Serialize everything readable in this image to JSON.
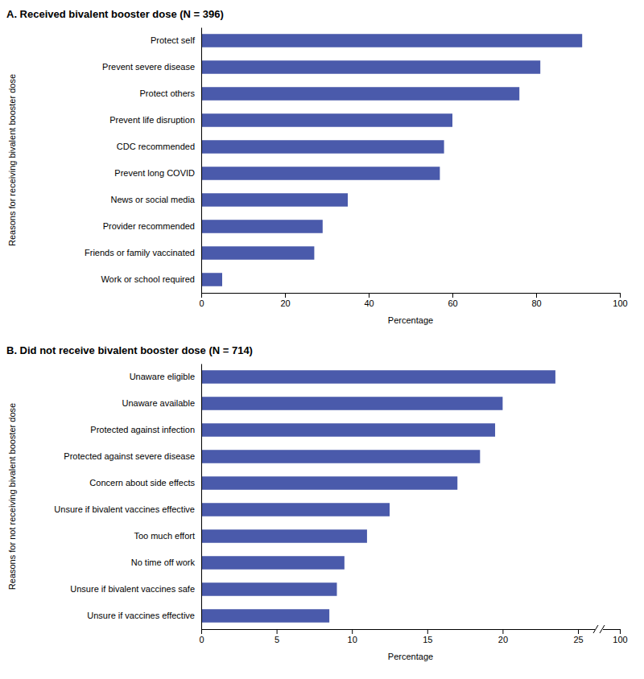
{
  "chart_data": [
    {
      "type": "bar",
      "orientation": "horizontal",
      "title": "A. Received bivalent booster dose (N = 396)",
      "ylabel": "Reasons for receiving bivalent booster dose",
      "xlabel": "Percentage",
      "categories": [
        "Work or school required",
        "Friends or family vaccinated",
        "Provider recommended",
        "News or social media",
        "Prevent long COVID",
        "CDC recommended",
        "Prevent life disruption",
        "Protect others",
        "Prevent severe disease",
        "Protect self"
      ],
      "values": [
        5,
        27,
        29,
        35,
        57,
        58,
        60,
        76,
        81,
        91
      ],
      "color": "#4a5aab",
      "xlim": [
        0,
        100
      ],
      "xticks": [
        0,
        20,
        40,
        60,
        80,
        100
      ]
    },
    {
      "type": "bar",
      "orientation": "horizontal",
      "title": "B. Did not receive bivalent booster dose (N = 714)",
      "ylabel": "Reasons for not receiving bivalent booster dose",
      "xlabel": "Percentage",
      "categories": [
        "Unsure if vaccines effective",
        "Unsure if bivalent vaccines safe",
        "No time off work",
        "Too much effort",
        "Unsure if bivalent vaccines effective",
        "Concern about side effects",
        "Protected against severe disease",
        "Protected against infection",
        "Unaware available",
        "Unaware eligible"
      ],
      "values": [
        8.5,
        9.0,
        9.5,
        11.0,
        12.5,
        17.0,
        18.5,
        19.5,
        20.0,
        23.5
      ],
      "color": "#4a5aab",
      "xlim": [
        0,
        100
      ],
      "xticks": [
        0,
        5,
        10,
        15,
        20,
        25,
        100
      ]
    }
  ]
}
